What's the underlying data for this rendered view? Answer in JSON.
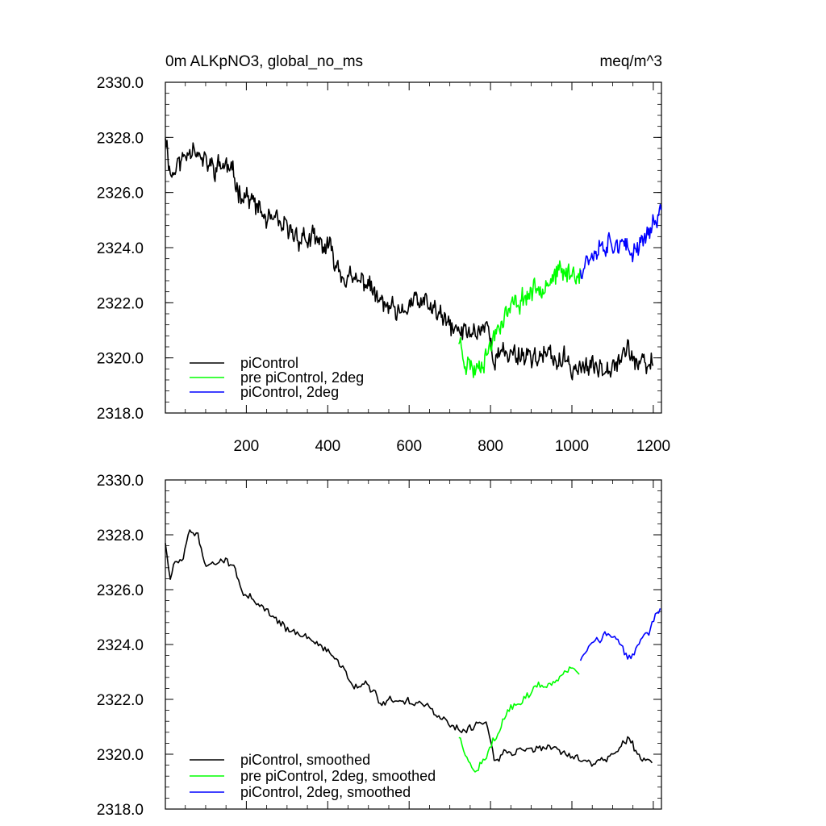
{
  "chart_data": [
    {
      "type": "line",
      "title_left": "0m ALKpNO3, global_no_ms",
      "title_right": "meq/m^3",
      "xlim": [
        1,
        1220
      ],
      "ylim": [
        2318.0,
        2330.0
      ],
      "xticks": [
        200,
        400,
        600,
        800,
        1000,
        1200
      ],
      "xtick_labels": [
        "200",
        "400",
        "600",
        "800",
        "1000",
        "1200"
      ],
      "yticks": [
        2318,
        2320,
        2322,
        2324,
        2326,
        2328,
        2330
      ],
      "ytick_labels": [
        "2318.0",
        "2320.0",
        "2322.0",
        "2324.0",
        "2326.0",
        "2328.0",
        "2330.0"
      ],
      "legend": "bottom-left",
      "series": [
        {
          "name": "piControl",
          "color": "#000000",
          "noise": 0.55,
          "knots": [
            [
              1,
              2328.2
            ],
            [
              15,
              2326.6
            ],
            [
              30,
              2327.0
            ],
            [
              50,
              2327.3
            ],
            [
              70,
              2327.9
            ],
            [
              90,
              2327.1
            ],
            [
              120,
              2326.9
            ],
            [
              150,
              2327.0
            ],
            [
              180,
              2326.2
            ],
            [
              200,
              2325.9
            ],
            [
              250,
              2325.0
            ],
            [
              300,
              2324.6
            ],
            [
              350,
              2324.3
            ],
            [
              400,
              2324.0
            ],
            [
              430,
              2323.2
            ],
            [
              460,
              2322.7
            ],
            [
              500,
              2322.8
            ],
            [
              520,
              2322.1
            ],
            [
              550,
              2321.8
            ],
            [
              580,
              2321.4
            ],
            [
              600,
              2322.0
            ],
            [
              650,
              2321.9
            ],
            [
              700,
              2321.1
            ],
            [
              730,
              2320.9
            ],
            [
              770,
              2321.0
            ],
            [
              790,
              2321.3
            ],
            [
              810,
              2320.0
            ],
            [
              850,
              2320.2
            ],
            [
              900,
              2320.1
            ],
            [
              950,
              2320.0
            ],
            [
              1000,
              2319.7
            ],
            [
              1050,
              2319.6
            ],
            [
              1100,
              2319.9
            ],
            [
              1140,
              2320.3
            ],
            [
              1170,
              2319.6
            ],
            [
              1200,
              2319.8
            ]
          ],
          "seed": 11
        },
        {
          "name": "pre piControl, 2deg",
          "color": "#00ff00",
          "noise": 0.55,
          "knots": [
            [
              722,
              2320.7
            ],
            [
              740,
              2319.9
            ],
            [
              760,
              2319.6
            ],
            [
              780,
              2320.0
            ],
            [
              800,
              2320.4
            ],
            [
              820,
              2321.3
            ],
            [
              850,
              2321.8
            ],
            [
              880,
              2322.2
            ],
            [
              910,
              2322.5
            ],
            [
              940,
              2322.9
            ],
            [
              970,
              2323.0
            ],
            [
              1000,
              2323.1
            ],
            [
              1020,
              2323.2
            ]
          ],
          "seed": 23
        },
        {
          "name": "piControl, 2deg",
          "color": "#0000ff",
          "noise": 0.55,
          "knots": [
            [
              1021,
              2323.3
            ],
            [
              1050,
              2323.9
            ],
            [
              1080,
              2324.2
            ],
            [
              1110,
              2324.3
            ],
            [
              1140,
              2323.7
            ],
            [
              1170,
              2324.3
            ],
            [
              1200,
              2324.8
            ],
            [
              1220,
              2325.4
            ]
          ],
          "seed": 37
        }
      ]
    },
    {
      "type": "line",
      "xlim": [
        1,
        1220
      ],
      "ylim": [
        2318.0,
        2330.0
      ],
      "xticks": [
        200,
        400,
        600,
        800,
        1000,
        1200
      ],
      "yticks": [
        2318,
        2320,
        2322,
        2324,
        2326,
        2328,
        2330
      ],
      "ytick_labels": [
        "2318.0",
        "2320.0",
        "2322.0",
        "2324.0",
        "2326.0",
        "2328.0",
        "2330.0"
      ],
      "legend": "bottom-left",
      "series": [
        {
          "name": "piControl, smoothed",
          "color": "#000000",
          "noise": 0.22,
          "knots": [
            [
              1,
              2327.7
            ],
            [
              12,
              2326.4
            ],
            [
              25,
              2327.0
            ],
            [
              45,
              2327.0
            ],
            [
              60,
              2328.1
            ],
            [
              80,
              2328.1
            ],
            [
              100,
              2326.8
            ],
            [
              120,
              2327.0
            ],
            [
              140,
              2327.2
            ],
            [
              170,
              2326.7
            ],
            [
              200,
              2325.8
            ],
            [
              250,
              2325.1
            ],
            [
              300,
              2324.6
            ],
            [
              350,
              2324.2
            ],
            [
              400,
              2323.8
            ],
            [
              430,
              2323.3
            ],
            [
              460,
              2322.6
            ],
            [
              500,
              2322.6
            ],
            [
              530,
              2321.8
            ],
            [
              570,
              2322.0
            ],
            [
              610,
              2321.9
            ],
            [
              650,
              2321.7
            ],
            [
              700,
              2321.0
            ],
            [
              740,
              2320.9
            ],
            [
              770,
              2321.0
            ],
            [
              790,
              2321.2
            ],
            [
              810,
              2319.9
            ],
            [
              850,
              2320.1
            ],
            [
              900,
              2320.2
            ],
            [
              950,
              2320.3
            ],
            [
              1000,
              2319.8
            ],
            [
              1050,
              2319.7
            ],
            [
              1100,
              2320.0
            ],
            [
              1140,
              2320.6
            ],
            [
              1170,
              2319.8
            ],
            [
              1200,
              2319.8
            ]
          ],
          "seed": 51
        },
        {
          "name": "pre piControl, 2deg, smoothed",
          "color": "#00ff00",
          "noise": 0.22,
          "knots": [
            [
              722,
              2320.6
            ],
            [
              740,
              2319.9
            ],
            [
              765,
              2319.4
            ],
            [
              790,
              2320.0
            ],
            [
              810,
              2320.6
            ],
            [
              840,
              2321.6
            ],
            [
              870,
              2321.9
            ],
            [
              900,
              2322.3
            ],
            [
              930,
              2322.5
            ],
            [
              960,
              2322.7
            ],
            [
              990,
              2323.1
            ],
            [
              1020,
              2323.0
            ]
          ],
          "seed": 63
        },
        {
          "name": "piControl, 2deg, smoothed",
          "color": "#0000ff",
          "noise": 0.22,
          "knots": [
            [
              1021,
              2323.5
            ],
            [
              1050,
              2324.0
            ],
            [
              1080,
              2324.4
            ],
            [
              1110,
              2324.2
            ],
            [
              1140,
              2323.4
            ],
            [
              1170,
              2324.1
            ],
            [
              1200,
              2324.8
            ],
            [
              1220,
              2325.3
            ]
          ],
          "seed": 77
        }
      ]
    }
  ]
}
